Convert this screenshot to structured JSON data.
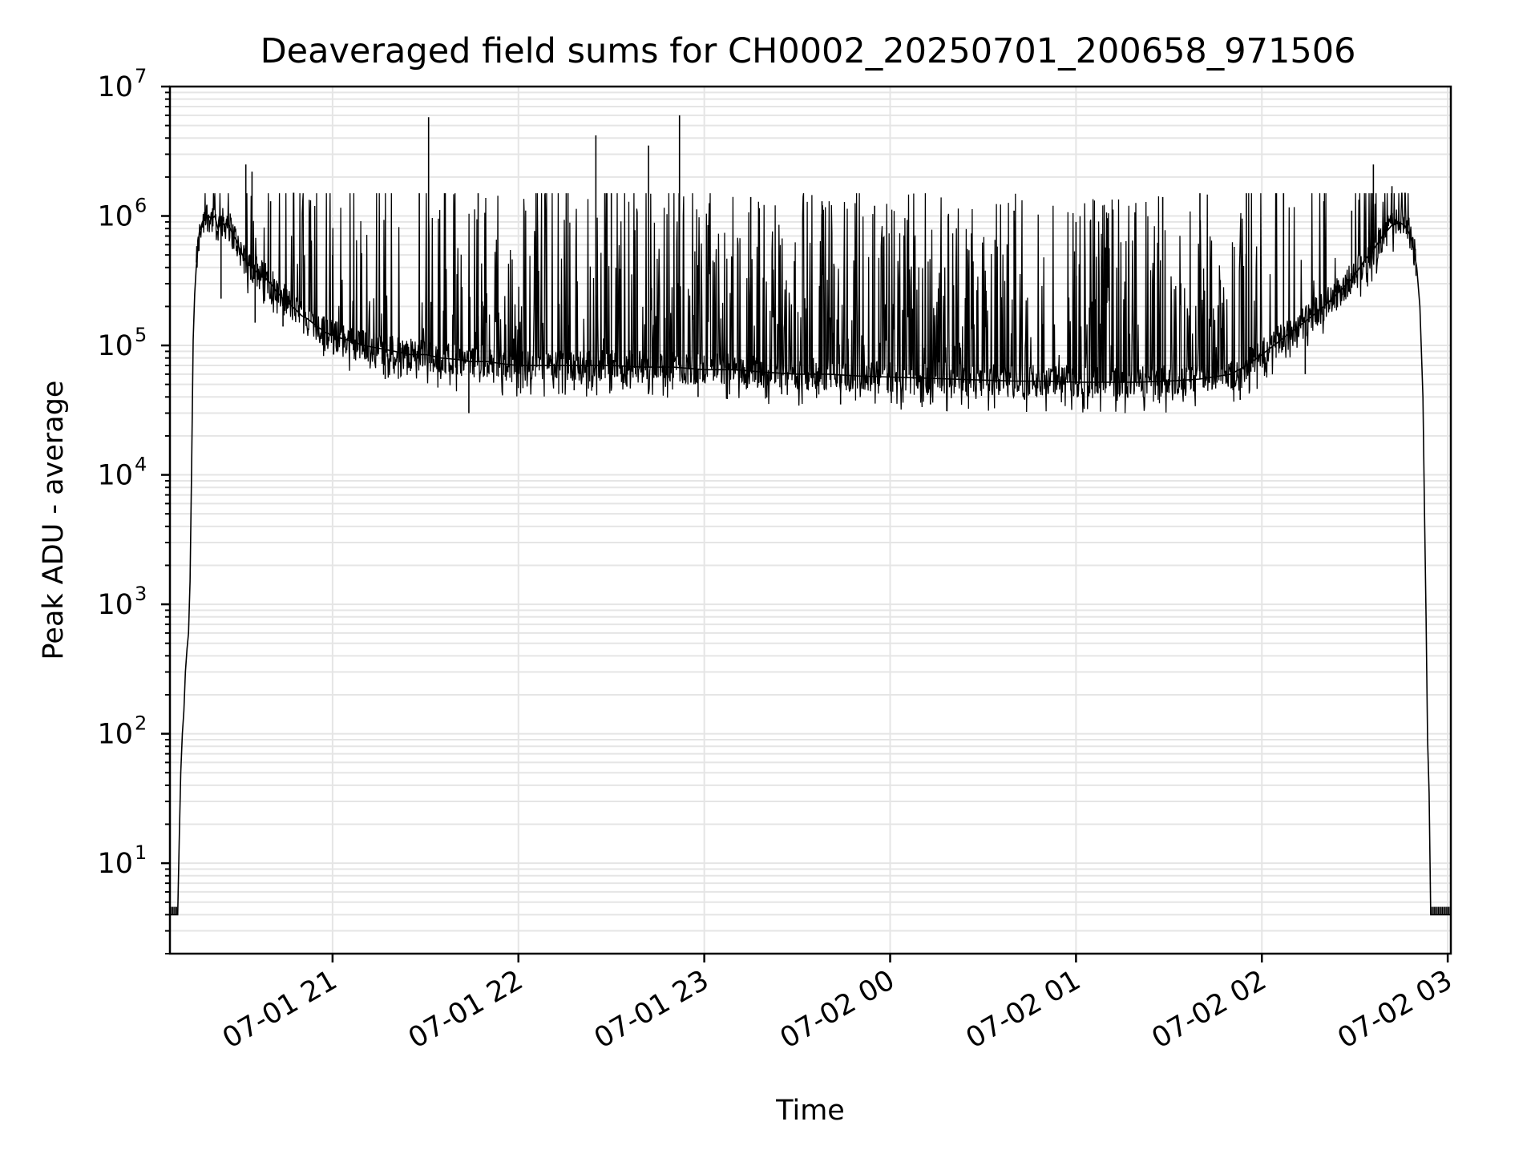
{
  "chart_data": {
    "type": "line",
    "title": "Deaveraged field sums for CH0002_20250701_200658_971506",
    "xlabel": "Time",
    "ylabel": "Peak ADU - average",
    "yscale": "log",
    "ylim": [
      2,
      10000000
    ],
    "xlim": [
      "2025-07-01 20:07:30",
      "2025-07-02 03:01:00"
    ],
    "grid": true,
    "legend": "none",
    "x_ticks": [
      {
        "t": "2025-07-01 21:00",
        "label": "07-01 21"
      },
      {
        "t": "2025-07-01 22:00",
        "label": "07-01 22"
      },
      {
        "t": "2025-07-01 23:00",
        "label": "07-01 23"
      },
      {
        "t": "2025-07-02 00:00",
        "label": "07-02 00"
      },
      {
        "t": "2025-07-02 01:00",
        "label": "07-02 01"
      },
      {
        "t": "2025-07-02 02:00",
        "label": "07-02 02"
      },
      {
        "t": "2025-07-02 03:00",
        "label": "07-02 03"
      }
    ],
    "y_ticks": [
      {
        "value": 10,
        "base": "10",
        "exp": "1"
      },
      {
        "value": 100,
        "base": "10",
        "exp": "2"
      },
      {
        "value": 1000,
        "base": "10",
        "exp": "3"
      },
      {
        "value": 10000,
        "base": "10",
        "exp": "4"
      },
      {
        "value": 100000,
        "base": "10",
        "exp": "5"
      },
      {
        "value": 1000000,
        "base": "10",
        "exp": "6"
      },
      {
        "value": 10000000,
        "base": "10",
        "exp": "7"
      }
    ],
    "line_color": "#000000",
    "grid_color": "#e5e5e5",
    "series": [
      {
        "x": [
          "2025-07-01 20:07:35",
          "2025-07-01 20:10:00",
          "2025-07-01 20:10:30",
          "2025-07-01 20:11:00",
          "2025-07-01 20:11:30",
          "2025-07-01 20:12:00",
          "2025-07-01 20:12:30",
          "2025-07-01 20:13:00",
          "2025-07-01 20:13:30",
          "2025-07-01 20:14:00",
          "2025-07-01 20:14:30",
          "2025-07-01 20:15:00",
          "2025-07-01 20:15:30",
          "2025-07-01 20:16:00",
          "2025-07-01 20:17:00",
          "2025-07-01 20:18:00",
          "2025-07-01 20:19:00",
          "2025-07-01 20:20:00",
          "2025-07-01 20:21:00",
          "2025-07-01 20:22:00",
          "2025-07-01 20:23:00",
          "2025-07-01 20:24:00",
          "2025-07-01 20:25:00",
          "2025-07-01 20:26:00",
          "2025-07-01 20:27:00",
          "2025-07-01 20:28:00",
          "2025-07-01 20:29:00",
          "2025-07-01 20:30:00",
          "2025-07-01 20:31:00",
          "2025-07-01 20:32:00",
          "2025-07-01 20:33:00",
          "2025-07-01 20:34:00",
          "2025-07-01 20:35:00",
          "2025-07-01 20:36:00",
          "2025-07-01 20:37:00",
          "2025-07-01 20:38:00",
          "2025-07-01 20:39:00",
          "2025-07-01 20:40:00",
          "2025-07-01 20:42:00",
          "2025-07-01 20:44:00",
          "2025-07-01 20:46:00",
          "2025-07-01 20:48:00",
          "2025-07-01 20:50:00",
          "2025-07-01 20:52:00",
          "2025-07-01 20:55:00",
          "2025-07-01 20:58:00",
          "2025-07-01 21:02:00",
          "2025-07-01 21:06:00",
          "2025-07-01 21:10:00",
          "2025-07-01 21:15:00",
          "2025-07-01 21:20:00",
          "2025-07-01 21:25:00",
          "2025-07-01 21:30:00",
          "2025-07-01 21:35:00",
          "2025-07-01 21:40:00",
          "2025-07-01 21:45:00",
          "2025-07-01 21:50:00",
          "2025-07-01 21:55:00",
          "2025-07-01 22:00:00",
          "2025-07-01 22:10:00",
          "2025-07-01 22:20:00",
          "2025-07-01 22:30:00",
          "2025-07-01 22:40:00",
          "2025-07-01 22:50:00",
          "2025-07-01 23:00:00",
          "2025-07-01 23:10:00",
          "2025-07-01 23:20:00",
          "2025-07-01 23:30:00",
          "2025-07-01 23:40:00",
          "2025-07-01 23:50:00",
          "2025-07-02 00:00:00",
          "2025-07-02 00:10:00",
          "2025-07-02 00:20:00",
          "2025-07-02 00:30:00",
          "2025-07-02 00:40:00",
          "2025-07-02 00:50:00",
          "2025-07-02 01:00:00",
          "2025-07-02 01:10:00",
          "2025-07-02 01:20:00",
          "2025-07-02 01:30:00",
          "2025-07-02 01:40:00",
          "2025-07-02 01:50:00",
          "2025-07-02 01:55:00",
          "2025-07-02 02:00:00",
          "2025-07-02 02:05:00",
          "2025-07-02 02:10:00",
          "2025-07-02 02:15:00",
          "2025-07-02 02:20:00",
          "2025-07-02 02:25:00",
          "2025-07-02 02:30:00",
          "2025-07-02 02:33:00",
          "2025-07-02 02:36:00",
          "2025-07-02 02:39:00",
          "2025-07-02 02:42:00",
          "2025-07-02 02:44:00",
          "2025-07-02 02:46:00",
          "2025-07-02 02:48:00",
          "2025-07-02 02:49:00",
          "2025-07-02 02:50:00",
          "2025-07-02 02:51:00",
          "2025-07-02 02:52:00",
          "2025-07-02 02:52:30",
          "2025-07-02 02:53:00",
          "2025-07-02 02:53:30",
          "2025-07-02 02:54:00",
          "2025-07-02 02:54:30",
          "2025-07-02 03:01:00"
        ],
        "y": [
          4,
          4,
          15,
          50,
          100,
          150,
          300,
          450,
          600,
          1500,
          12000,
          110000,
          250000,
          400000,
          750000,
          900000,
          1000000,
          1000000,
          950000,
          1000000,
          800000,
          900000,
          850000,
          900000,
          800000,
          700000,
          650000,
          550000,
          500000,
          450000,
          420000,
          400000,
          380000,
          360000,
          350000,
          340000,
          320000,
          300000,
          260000,
          230000,
          210000,
          190000,
          170000,
          160000,
          140000,
          125000,
          115000,
          108000,
          100000,
          95000,
          90000,
          85000,
          85000,
          80000,
          78000,
          75000,
          75000,
          72000,
          70000,
          70000,
          70000,
          70000,
          68000,
          68000,
          65000,
          65000,
          62000,
          60000,
          60000,
          58000,
          57000,
          56000,
          55000,
          54000,
          53000,
          53000,
          52000,
          52000,
          52000,
          53000,
          55000,
          60000,
          70000,
          85000,
          105000,
          130000,
          160000,
          200000,
          260000,
          350000,
          450000,
          550000,
          700000,
          850000,
          900000,
          850000,
          700000,
          550000,
          400000,
          200000,
          40000,
          5000,
          800,
          90,
          35,
          4,
          4
        ]
      },
      {
        "name": "",
        "x": [
          "2025-07-01 20:26:00",
          "2025-07-01 20:32:00",
          "2025-07-01 20:34:00",
          "2025-07-01 20:40:00",
          "2025-07-01 21:00:00",
          "2025-07-01 21:28:00",
          "2025-07-01 21:31:00",
          "2025-07-01 21:47:00",
          "2025-07-01 22:16:00",
          "2025-07-01 22:25:00",
          "2025-07-01 22:30:00",
          "2025-07-01 22:42:00",
          "2025-07-01 22:52:00",
          "2025-07-01 23:15:00",
          "2025-07-01 23:38:00",
          "2025-07-01 23:55:00",
          "2025-07-02 00:40:00",
          "2025-07-02 01:00:00",
          "2025-07-02 01:28:00",
          "2025-07-02 01:40:00",
          "2025-07-02 01:55:00",
          "2025-07-02 02:07:00",
          "2025-07-02 02:20:00",
          "2025-07-02 02:29:00",
          "2025-07-02 02:36:00",
          "2025-07-02 02:42:00"
        ],
        "y": [
          1000000,
          2500000,
          2200000,
          1300000,
          500000,
          1500000,
          5800000,
          1500000,
          1500000,
          4200000,
          1500000,
          3500000,
          6000000,
          1400000,
          1300000,
          1200000,
          1100000,
          900000,
          1400000,
          1500000,
          1500000,
          1500000,
          1300000,
          1100000,
          2500000,
          1700000
        ]
      },
      {
        "name": "",
        "x": [
          "2025-07-01 20:24:00",
          "2025-07-01 20:35:00",
          "2025-07-01 20:44:00",
          "2025-07-01 21:17:00",
          "2025-07-01 21:44:00",
          "2025-07-01 22:18:00",
          "2025-07-01 22:35:00",
          "2025-07-01 22:58:00",
          "2025-07-01 23:25:00",
          "2025-07-01 23:44:00",
          "2025-07-02 00:13:00",
          "2025-07-02 00:45:00",
          "2025-07-02 01:08:00",
          "2025-07-02 01:30:00",
          "2025-07-02 01:53:00",
          "2025-07-02 02:14:00"
        ],
        "y": [
          230000,
          150000,
          140000,
          55000,
          30000,
          45000,
          48000,
          40000,
          42000,
          35000,
          35000,
          42000,
          44000,
          43000,
          38000,
          60000
        ]
      }
    ]
  }
}
